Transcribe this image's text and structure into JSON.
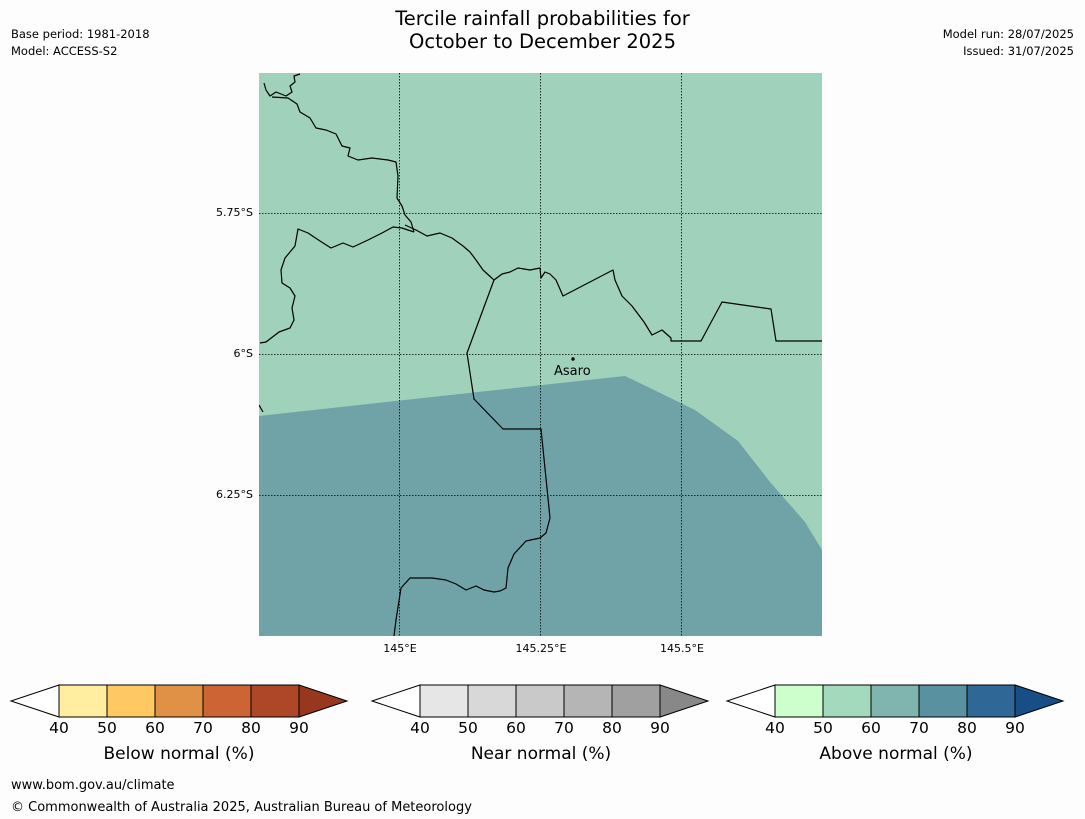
{
  "header": {
    "title_line1": "Tercile rainfall probabilities for",
    "title_line2": "October to December 2025",
    "base_period": "Base period: 1981-2018",
    "model": "Model: ACCESS-S2",
    "model_run": "Model run: 28/07/2025",
    "issued": "Issued: 31/07/2025"
  },
  "map": {
    "lat_labels": [
      "5.75°S",
      "6°S",
      "6.25°S"
    ],
    "lon_labels": [
      "145°E",
      "145.25°E",
      "145.5°E"
    ],
    "place_label": "Asaro",
    "region_colors": {
      "above_normal_50_60": "#9fd1bb",
      "above_normal_60_70": "#6fa3a8",
      "border": "#000000",
      "gridline": "#000000"
    }
  },
  "colorbars": [
    {
      "title": "Below normal (%)",
      "ticks": [
        "40",
        "50",
        "60",
        "70",
        "80",
        "90"
      ],
      "colors": [
        "#ffeda0",
        "#fec863",
        "#e09145",
        "#cd6433",
        "#ad4727",
        "#97371f"
      ]
    },
    {
      "title": "Near normal (%)",
      "ticks": [
        "40",
        "50",
        "60",
        "70",
        "80",
        "90"
      ],
      "colors": [
        "#e6e6e6",
        "#d8d8d8",
        "#c9c9c9",
        "#b5b5b5",
        "#a0a0a0",
        "#888888"
      ]
    },
    {
      "title": "Above normal (%)",
      "ticks": [
        "40",
        "50",
        "60",
        "70",
        "80",
        "90"
      ],
      "colors": [
        "#ccffcc",
        "#a3d9bd",
        "#7fb5ae",
        "#5a91a0",
        "#2f6796",
        "#184e86"
      ]
    }
  ],
  "footer": {
    "url": "www.bom.gov.au/climate",
    "copyright": "© Commonwealth of Australia 2025, Australian Bureau of Meteorology"
  }
}
